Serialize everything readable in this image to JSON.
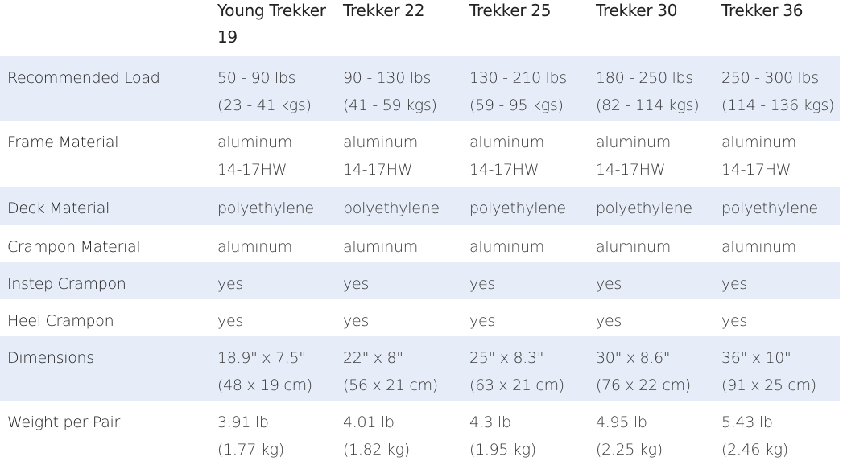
{
  "table": {
    "columns": [
      "Young Trekker 19",
      "Trekker 22",
      "Trekker 25",
      "Trekker 30",
      "Trekker 36"
    ],
    "rows": [
      {
        "label": "Recommended Load",
        "cells": [
          [
            "50 - 90 lbs",
            "(23 - 41 kgs)"
          ],
          [
            "90 - 130 lbs",
            "(41 - 59 kgs)"
          ],
          [
            "130 - 210 lbs",
            "(59 - 95 kgs)"
          ],
          [
            "180 - 250 lbs",
            "(82 - 114 kgs)"
          ],
          [
            "250 - 300 lbs",
            "(114 - 136 kgs)"
          ]
        ]
      },
      {
        "label": "Frame Material",
        "cells": [
          [
            "aluminum",
            "14-17HW"
          ],
          [
            "aluminum",
            "14-17HW"
          ],
          [
            "aluminum",
            "14-17HW"
          ],
          [
            "aluminum",
            "14-17HW"
          ],
          [
            "aluminum",
            "14-17HW"
          ]
        ]
      },
      {
        "label": "Deck Material",
        "cells": [
          [
            "polyethylene"
          ],
          [
            "polyethylene"
          ],
          [
            "polyethylene"
          ],
          [
            "polyethylene"
          ],
          [
            "polyethylene"
          ]
        ]
      },
      {
        "label": "Crampon Material",
        "cells": [
          [
            "aluminum"
          ],
          [
            "aluminum"
          ],
          [
            "aluminum"
          ],
          [
            "aluminum"
          ],
          [
            "aluminum"
          ]
        ]
      },
      {
        "label": "Instep Crampon",
        "cells": [
          [
            "yes"
          ],
          [
            "yes"
          ],
          [
            "yes"
          ],
          [
            "yes"
          ],
          [
            "yes"
          ]
        ]
      },
      {
        "label": "Heel Crampon",
        "cells": [
          [
            "yes"
          ],
          [
            "yes"
          ],
          [
            "yes"
          ],
          [
            "yes"
          ],
          [
            "yes"
          ]
        ]
      },
      {
        "label": "Dimensions",
        "cells": [
          [
            "18.9\" x 7.5\"",
            "(48 x 19 cm)"
          ],
          [
            "22\" x 8\"",
            "(56 x 21 cm)"
          ],
          [
            "25\" x 8.3\"",
            "(63 x 21 cm)"
          ],
          [
            "30\" x 8.6\"",
            "(76 x 22 cm)"
          ],
          [
            "36\" x 10\"",
            "(91 x 25 cm)"
          ]
        ]
      },
      {
        "label": "Weight per Pair",
        "cells": [
          [
            "3.91 lb",
            "(1.77 kg)"
          ],
          [
            "4.01 lb",
            "(1.82 kg)"
          ],
          [
            "4.3 lb",
            "(1.95 kg)"
          ],
          [
            "4.95 lb",
            "(2.25 kg)"
          ],
          [
            "5.43 lb",
            "(2.46 kg)"
          ]
        ]
      }
    ]
  }
}
